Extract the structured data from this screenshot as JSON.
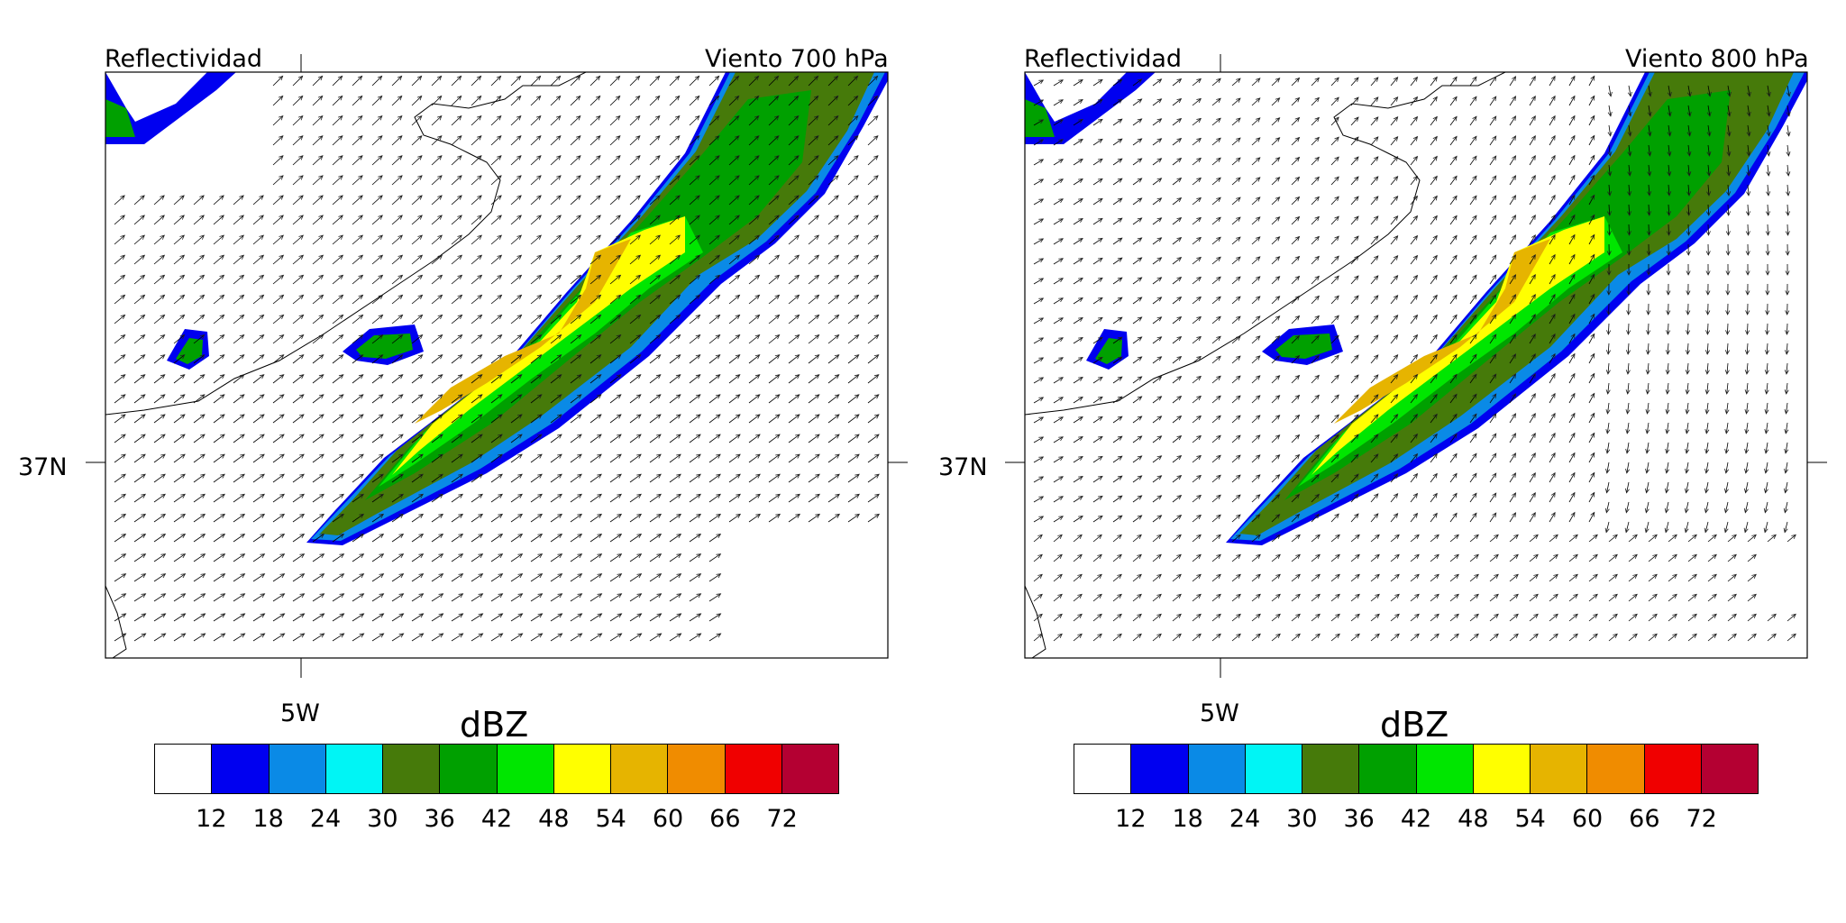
{
  "panels": [
    {
      "left_title": "Reflectividad",
      "right_title": "Viento 700 hPa",
      "lat_label": "37N",
      "lon_label": "5W",
      "variant": "700"
    },
    {
      "left_title": "Reflectividad",
      "right_title": "Viento 800 hPa",
      "lat_label": "37N",
      "lon_label": "5W",
      "variant": "800"
    }
  ],
  "colorbar": {
    "unit": "dBZ",
    "ticks": [
      "12",
      "18",
      "24",
      "30",
      "36",
      "42",
      "48",
      "54",
      "60",
      "66",
      "72"
    ],
    "colors": [
      "#ffffff",
      "#0000f0",
      "#0a8ae6",
      "#00f5f5",
      "#467a0a",
      "#00a000",
      "#00e600",
      "#ffff00",
      "#e6b400",
      "#f08c00",
      "#f00000",
      "#b40032"
    ]
  }
}
